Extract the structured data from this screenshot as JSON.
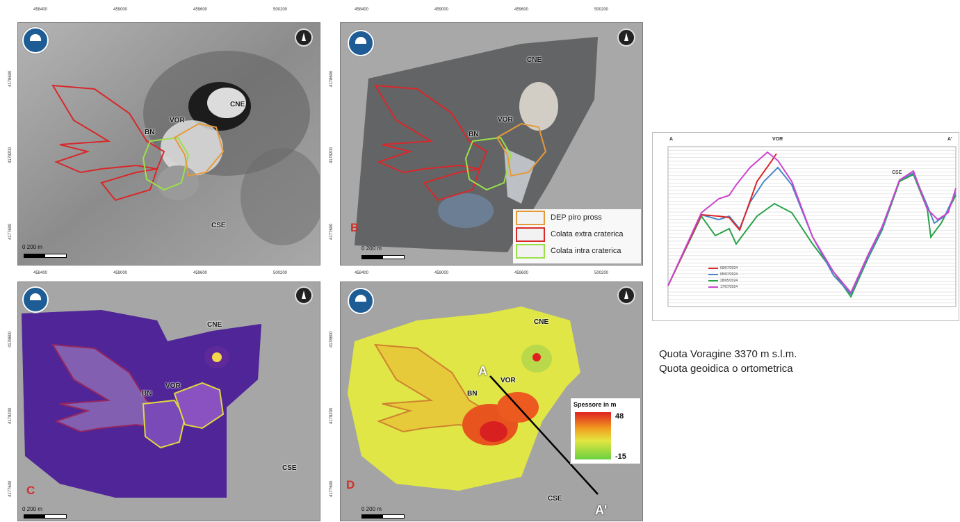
{
  "top_coords": [
    "458400",
    "459000",
    "459600",
    "500200"
  ],
  "left_coords": [
    "4178600",
    "4178200",
    "4177600"
  ],
  "scale_label": "0     200 m",
  "labels": {
    "cne": "CNE",
    "vor": "VOR",
    "bn": "BN",
    "cse": "CSE"
  },
  "panel_letters": {
    "b": "B",
    "c": "C",
    "d": "D"
  },
  "legend": {
    "items": [
      {
        "label": "DEP piro pross",
        "color": "#e59a3a"
      },
      {
        "label": "Colata extra craterica",
        "color": "#d8282a"
      },
      {
        "label": "Colata intra craterica",
        "color": "#9be04a"
      }
    ]
  },
  "thickness": {
    "title": "Spessore in m",
    "max": "48",
    "min": "-15"
  },
  "section": {
    "start": "A",
    "end": "A'"
  },
  "profile": {
    "left_label": "A",
    "right_label": "A'",
    "peak1": "VOR",
    "peak2": "CSE",
    "series": [
      {
        "name": "09/07/2024",
        "color": "#d8282a"
      },
      {
        "name": "05/07/2024",
        "color": "#4b86c6"
      },
      {
        "name": "28/05/2024",
        "color": "#2aa24a"
      },
      {
        "name": "17/07/2024",
        "color": "#cc44cc"
      }
    ]
  },
  "caption": {
    "line1": "Quota Voragine 3370 m s.l.m.",
    "line2": "Quota geoidica o ortometrica"
  }
}
